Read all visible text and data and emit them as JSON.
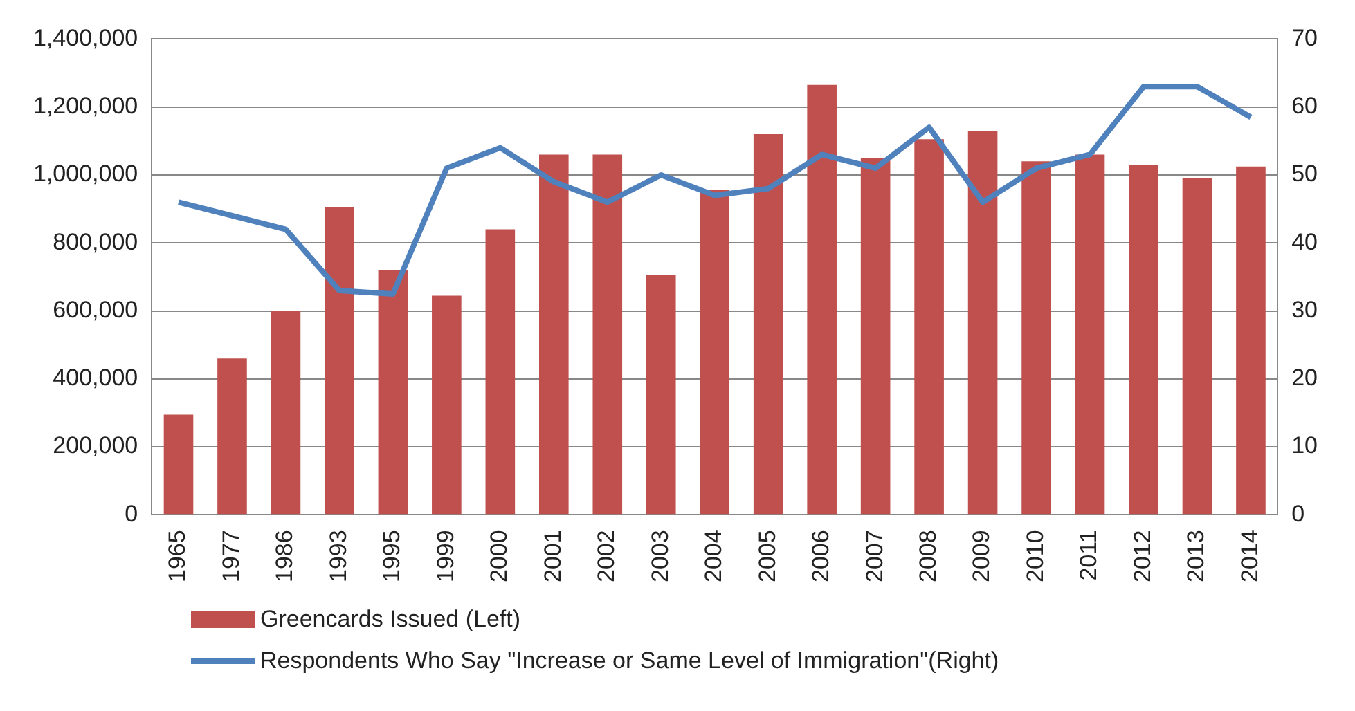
{
  "chart_data": {
    "type": "bar",
    "categories": [
      "1965",
      "1977",
      "1986",
      "1993",
      "1995",
      "1999",
      "2000",
      "2001",
      "2002",
      "2003",
      "2004",
      "2005",
      "2006",
      "2007",
      "2008",
      "2009",
      "2010",
      "2011",
      "2012",
      "2013",
      "2014"
    ],
    "series": [
      {
        "name": "Greencards Issued (Left)",
        "color": "#c0504d",
        "values": [
          295000,
          460000,
          600000,
          905000,
          720000,
          645000,
          840000,
          1060000,
          1060000,
          705000,
          955000,
          1120000,
          1265000,
          1050000,
          1105000,
          1130000,
          1040000,
          1060000,
          1030000,
          990000,
          1025000
        ]
      },
      {
        "name": "Respondents Who Say \"Increase or Same Level of Immigration\"(Right)",
        "type": "line",
        "axis": "y2",
        "color": "#4f81bd",
        "values": [
          46,
          44,
          42,
          33,
          32.5,
          51,
          54,
          49,
          46,
          50,
          47,
          48,
          53,
          51,
          57,
          46,
          51,
          53,
          63,
          63,
          58.5
        ]
      }
    ],
    "ylim": [
      0,
      1400000
    ],
    "yticks": [
      {
        "value": 0,
        "label": "0"
      },
      {
        "value": 200000,
        "label": "200,000"
      },
      {
        "value": 400000,
        "label": "400,000"
      },
      {
        "value": 600000,
        "label": "600,000"
      },
      {
        "value": 800000,
        "label": "800,000"
      },
      {
        "value": 1000000,
        "label": "1,000,000"
      },
      {
        "value": 1200000,
        "label": "1,200,000"
      },
      {
        "value": 1400000,
        "label": "1,400,000"
      }
    ],
    "y2lim": [
      0,
      70
    ],
    "y2ticks": [
      0,
      10,
      20,
      30,
      40,
      50,
      60,
      70
    ],
    "grid": "y",
    "legend": "bottom",
    "marker": "none",
    "line_style": "solid"
  }
}
